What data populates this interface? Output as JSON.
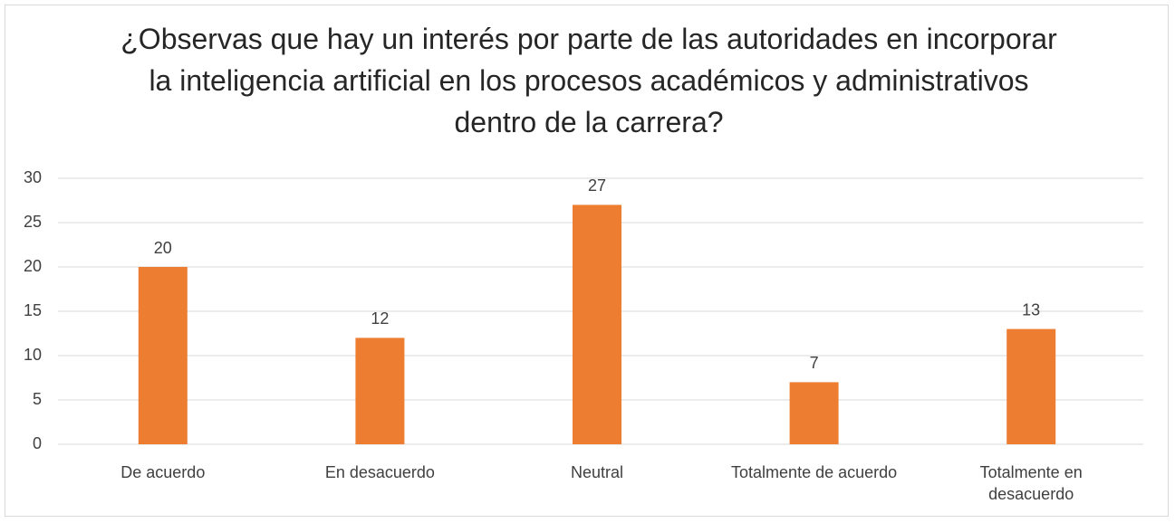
{
  "chart_data": {
    "type": "bar",
    "title": "¿Observas que hay un interés por parte de las autoridades en incorporar la  inteligencia artificial en los procesos académicos y administrativos dentro de la carrera?",
    "categories": [
      "De acuerdo",
      "En desacuerdo",
      "Neutral",
      "Totalmente de acuerdo",
      "Totalmente en desacuerdo"
    ],
    "values": [
      20,
      12,
      27,
      7,
      13
    ],
    "color": "#ed7d31",
    "ylim": [
      0,
      30
    ],
    "yticks": [
      0,
      5,
      10,
      15,
      20,
      25,
      30
    ],
    "grid": true
  }
}
